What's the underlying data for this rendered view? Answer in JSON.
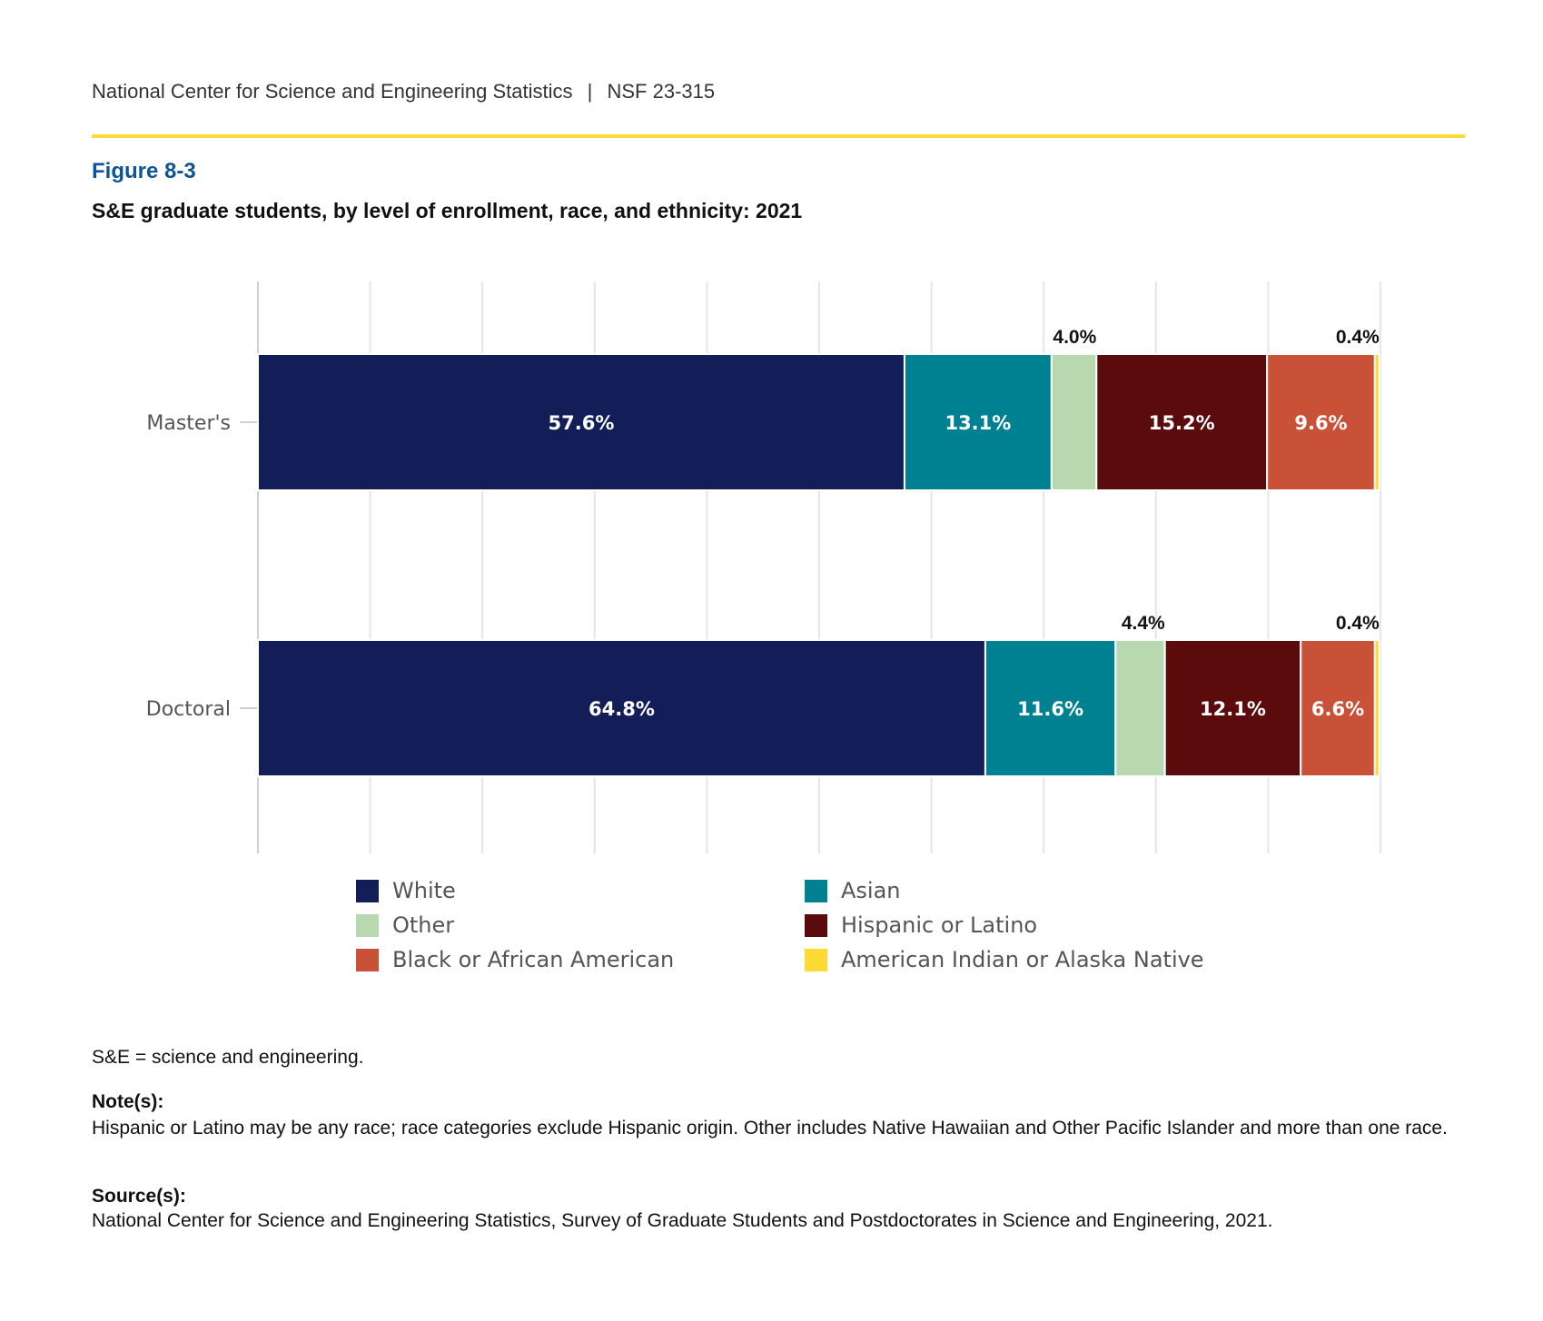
{
  "header": {
    "org": "National Center for Science and Engineering Statistics",
    "separator": "|",
    "report": "NSF 23-315"
  },
  "figure": {
    "label": "Figure 8-3",
    "title": "S&E graduate students, by level of enrollment, race, and ethnicity: 2021"
  },
  "colors": {
    "accent_rule": "#fddb33",
    "figure_label": "#0d5395"
  },
  "chart_data": {
    "type": "bar",
    "orientation": "horizontal",
    "stacked": true,
    "categories": [
      "Master's",
      "Doctoral"
    ],
    "xlim": [
      0,
      100
    ],
    "grid": true,
    "legend_position": "bottom",
    "series": [
      {
        "name": "White",
        "color": "#131e58",
        "values": [
          57.6,
          64.8
        ],
        "labels": [
          "57.6%",
          "64.8%"
        ]
      },
      {
        "name": "Asian",
        "color": "#008191",
        "values": [
          13.1,
          11.6
        ],
        "labels": [
          "13.1%",
          "11.6%"
        ]
      },
      {
        "name": "Other",
        "color": "#b8d8b0",
        "values": [
          4.0,
          4.4
        ],
        "labels": [
          "4.0%",
          "4.4%"
        ]
      },
      {
        "name": "Hispanic or Latino",
        "color": "#5c0b0d",
        "values": [
          15.2,
          12.1
        ],
        "labels": [
          "15.2%",
          "12.1%"
        ]
      },
      {
        "name": "Black or African American",
        "color": "#c95138",
        "values": [
          9.6,
          6.6
        ],
        "labels": [
          "9.6%",
          "6.6%"
        ]
      },
      {
        "name": "American Indian or Alaska Native",
        "color": "#fddb33",
        "values": [
          0.4,
          0.4
        ],
        "labels": [
          "0.4%",
          "0.4%"
        ]
      }
    ]
  },
  "legend": [
    {
      "label": "White",
      "color": "#131e58"
    },
    {
      "label": "Asian",
      "color": "#008191"
    },
    {
      "label": "Other",
      "color": "#b8d8b0"
    },
    {
      "label": "Hispanic or Latino",
      "color": "#5c0b0d"
    },
    {
      "label": "Black or African American",
      "color": "#c95138"
    },
    {
      "label": "American Indian or Alaska Native",
      "color": "#fddb33"
    }
  ],
  "footnote": "S&E = science and engineering.",
  "notes": {
    "heading": "Note(s):",
    "text": "Hispanic or Latino may be any race; race categories exclude Hispanic origin. Other includes Native Hawaiian and Other Pacific Islander and more than one race."
  },
  "source": {
    "heading": "Source(s):",
    "text": "National Center for Science and Engineering Statistics, Survey of Graduate Students and Postdoctorates in Science and Engineering, 2021."
  }
}
